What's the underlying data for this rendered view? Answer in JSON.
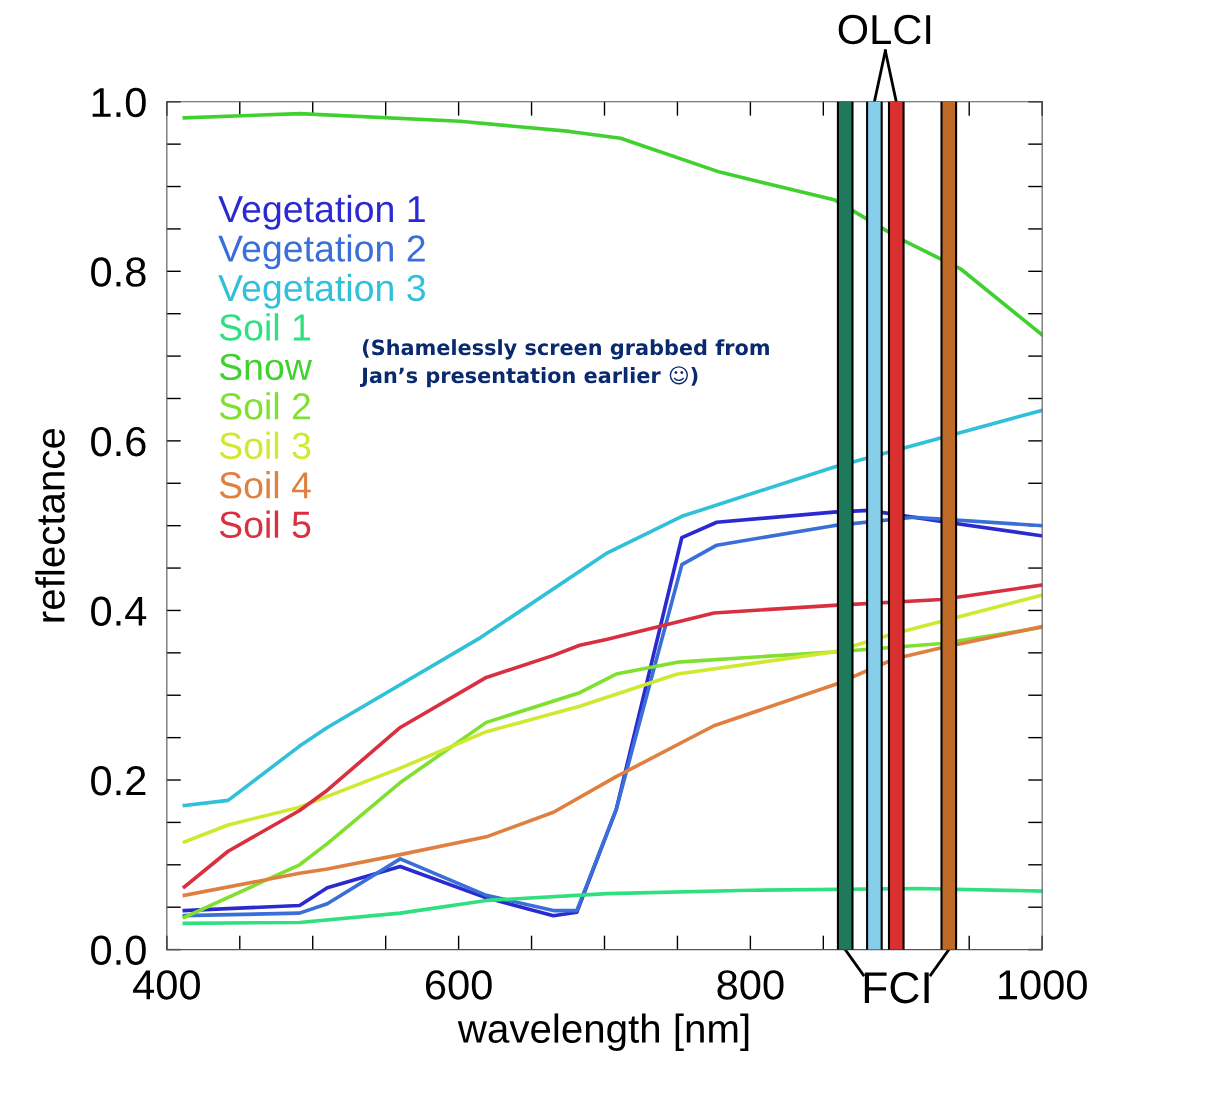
{
  "chart_data": {
    "type": "line",
    "xlabel": "wavelength [nm]",
    "ylabel": "reflectance",
    "xlim": [
      400,
      1000
    ],
    "ylim": [
      0,
      1
    ],
    "xticks": [
      400,
      {
        "value": 450,
        "label": null
      },
      {
        "value": 500,
        "label": null
      },
      {
        "value": 550,
        "label": null
      },
      600,
      {
        "value": 650,
        "label": null
      },
      {
        "value": 700,
        "label": null
      },
      {
        "value": 750,
        "label": null
      },
      800,
      {
        "value": 850,
        "label": null
      },
      {
        "value": 900,
        "label": null
      },
      {
        "value": 950,
        "label": null
      },
      1000
    ],
    "yticks": [
      {
        "value": 0,
        "label": "0.0"
      },
      {
        "value": 0.05,
        "label": null
      },
      {
        "value": 0.1,
        "label": null
      },
      {
        "value": 0.15,
        "label": null
      },
      {
        "value": 0.2,
        "label": "0.2"
      },
      {
        "value": 0.25,
        "label": null
      },
      {
        "value": 0.3,
        "label": null
      },
      {
        "value": 0.35,
        "label": null
      },
      {
        "value": 0.4,
        "label": "0.4"
      },
      {
        "value": 0.45,
        "label": null
      },
      {
        "value": 0.5,
        "label": null
      },
      {
        "value": 0.55,
        "label": null
      },
      {
        "value": 0.6,
        "label": "0.6"
      },
      {
        "value": 0.65,
        "label": null
      },
      {
        "value": 0.7,
        "label": null
      },
      {
        "value": 0.75,
        "label": null
      },
      {
        "value": 0.8,
        "label": "0.8"
      },
      {
        "value": 0.85,
        "label": null
      },
      {
        "value": 0.9,
        "label": null
      },
      {
        "value": 0.95,
        "label": null
      },
      {
        "value": 1,
        "label": "1.0"
      }
    ],
    "grid": false,
    "legend": "top left",
    "marker": "none",
    "line_style": "solid",
    "series": [
      {
        "name": "Vegetation 1",
        "color": "#2a2ad0",
        "x": [
          412,
          491,
          510,
          560,
          619,
          665,
          681,
          708,
          753,
          777,
          857,
          881,
          931,
          1000
        ],
        "values": [
          0.046,
          0.052,
          0.073,
          0.098,
          0.061,
          0.04,
          0.044,
          0.165,
          0.486,
          0.504,
          0.516,
          0.518,
          0.505,
          0.488
        ]
      },
      {
        "name": "Vegetation 2",
        "color": "#3a6ed8",
        "x": [
          412,
          491,
          510,
          560,
          619,
          665,
          681,
          708,
          753,
          777,
          857,
          912,
          1000
        ],
        "values": [
          0.04,
          0.043,
          0.054,
          0.107,
          0.064,
          0.046,
          0.046,
          0.165,
          0.454,
          0.477,
          0.5,
          0.51,
          0.5
        ]
      },
      {
        "name": "Vegetation 3",
        "color": "#30c0d8",
        "x": [
          412,
          442,
          491,
          510,
          615,
          702,
          753,
          857,
          1000
        ],
        "values": [
          0.17,
          0.176,
          0.24,
          0.262,
          0.368,
          0.468,
          0.511,
          0.569,
          0.636
        ]
      },
      {
        "name": "Soil 1",
        "color": "#30e080",
        "x": [
          412,
          491,
          560,
          619,
          702,
          800,
          915,
          1000
        ],
        "values": [
          0.031,
          0.032,
          0.043,
          0.058,
          0.066,
          0.07,
          0.072,
          0.069
        ]
      },
      {
        "name": "Snow",
        "color": "#40d030",
        "x": [
          412,
          491,
          601,
          676,
          711,
          779,
          858,
          903,
          944,
          1000
        ],
        "values": [
          0.981,
          0.986,
          0.977,
          0.965,
          0.957,
          0.917,
          0.884,
          0.838,
          0.803,
          0.725
        ]
      },
      {
        "name": "Soil 2",
        "color": "#80e030",
        "x": [
          412,
          491,
          510,
          560,
          619,
          683,
          708,
          750,
          857,
          931,
          1000
        ],
        "values": [
          0.038,
          0.1,
          0.125,
          0.197,
          0.268,
          0.303,
          0.325,
          0.339,
          0.351,
          0.361,
          0.38
        ]
      },
      {
        "name": "Soil 3",
        "color": "#d0e830",
        "x": [
          412,
          442,
          491,
          560,
          619,
          683,
          750,
          857,
          897,
          1000
        ],
        "values": [
          0.127,
          0.147,
          0.168,
          0.214,
          0.257,
          0.287,
          0.325,
          0.351,
          0.372,
          0.418
        ]
      },
      {
        "name": "Soil 4",
        "color": "#e08040",
        "x": [
          412,
          491,
          510,
          560,
          619,
          665,
          708,
          775,
          857,
          899,
          931,
          1000
        ],
        "values": [
          0.064,
          0.09,
          0.095,
          0.112,
          0.133,
          0.162,
          0.204,
          0.264,
          0.312,
          0.343,
          0.356,
          0.381
        ]
      },
      {
        "name": "Soil 5",
        "color": "#d83040",
        "x": [
          412,
          442,
          491,
          510,
          560,
          619,
          665,
          683,
          702,
          775,
          857,
          931,
          1000
        ],
        "values": [
          0.074,
          0.116,
          0.164,
          0.188,
          0.262,
          0.321,
          0.347,
          0.359,
          0.366,
          0.397,
          0.406,
          0.413,
          0.43
        ]
      }
    ],
    "ref_lines": [
      {
        "axis": "x",
        "value": 865,
        "color": "#1e7a5a"
      },
      {
        "axis": "x",
        "value": 885,
        "color": "#87ceeb"
      },
      {
        "axis": "x",
        "value": 900,
        "color": "#d93030"
      },
      {
        "axis": "x",
        "value": 936,
        "color": "#c06a28"
      }
    ],
    "annotations": [
      "OLCI",
      "FCI",
      "(Shamelessly screen grabbed from\nJan’s presentation earlier ☺)"
    ]
  }
}
